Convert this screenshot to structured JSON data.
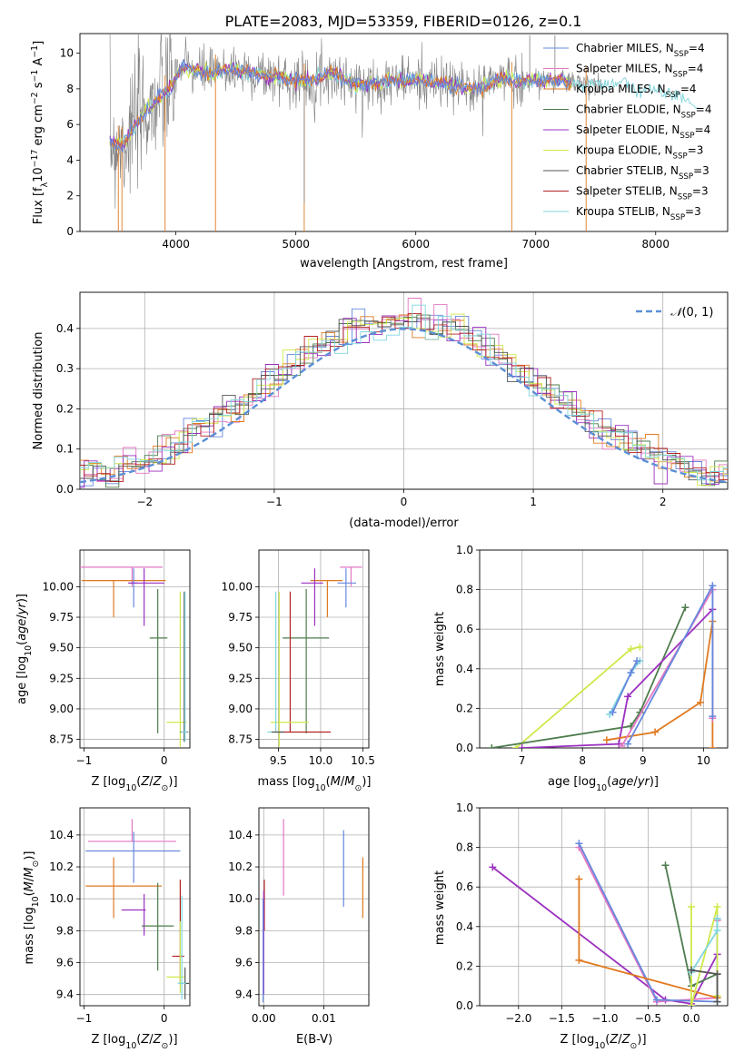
{
  "figure_title": "PLATE=2083, MJD=53359, FIBERID=0126, z=0.1",
  "colors": {
    "Chabrier MILES": "#6688dd",
    "Salpeter MILES": "#e377c2",
    "Kroupa MILES": "#e07a20",
    "Chabrier ELODIE": "#4e7d4e",
    "Salpeter ELODIE": "#9b30c0",
    "Kroupa ELODIE": "#cfe84a",
    "Chabrier STELIB": "#555555",
    "Salpeter STELIB": "#b22222",
    "Kroupa STELIB": "#7fd6dd",
    "data": "#808080",
    "normal": "#5b8fd6"
  },
  "chart_data": [
    {
      "id": "spectrum",
      "type": "line",
      "title": "PLATE=2083, MJD=53359, FIBERID=0126, z=0.1",
      "xlabel": "wavelength [Angstrom, rest frame]",
      "ylabel": "Flux [f_λ10^-17 erg cm^-2 s^-1 A^-1]",
      "xlim": [
        3200,
        8600
      ],
      "ylim": [
        0,
        11.1
      ],
      "xticks": [
        4000,
        5000,
        6000,
        7000,
        8000
      ],
      "yticks": [
        0,
        2,
        4,
        6,
        8,
        10
      ],
      "legend_position": "top-right",
      "legend": [
        {
          "name": "Chabrier MILES",
          "nssp": "4"
        },
        {
          "name": "Salpeter MILES",
          "nssp": "4"
        },
        {
          "name": "Kroupa MILES",
          "nssp": "4"
        },
        {
          "name": "Chabrier ELODIE",
          "nssp": "4"
        },
        {
          "name": "Salpeter ELODIE",
          "nssp": "4"
        },
        {
          "name": "Kroupa ELODIE",
          "nssp": "3"
        },
        {
          "name": "Chabrier STELIB",
          "nssp": "3"
        },
        {
          "name": "Salpeter STELIB",
          "nssp": "3"
        },
        {
          "name": "Kroupa STELIB",
          "nssp": "3"
        }
      ],
      "continuum": {
        "x": [
          3450,
          3550,
          3650,
          3750,
          3850,
          3950,
          4050,
          4150,
          4300,
          4500,
          4700,
          4900,
          5100,
          5300,
          5500,
          5700,
          5900,
          6100,
          6300,
          6500,
          6700,
          6900,
          7100,
          7300,
          7500,
          7700,
          7900,
          8100,
          8350
        ],
        "y": [
          5.0,
          4.9,
          5.8,
          6.8,
          7.4,
          8.0,
          9.3,
          9.0,
          8.9,
          9.1,
          8.8,
          8.6,
          8.4,
          8.9,
          8.2,
          8.4,
          8.5,
          8.4,
          8.2,
          8.0,
          8.6,
          8.4,
          8.5,
          8.4,
          8.1,
          8.4,
          8.0,
          7.8,
          7.0
        ]
      },
      "noise_end": 6900,
      "drop_lines": [
        3520,
        3550,
        3910,
        4330,
        5070,
        6800,
        7420
      ]
    },
    {
      "id": "residuals",
      "type": "histogram",
      "xlabel": "(data-model)/error",
      "ylabel": "Normed distribution",
      "xlim": [
        -2.5,
        2.5
      ],
      "ylim": [
        0,
        0.49
      ],
      "xticks": [
        -2,
        -1,
        0,
        1,
        2
      ],
      "yticks": [
        0.0,
        0.1,
        0.2,
        0.3,
        0.4
      ],
      "legend_position": "top-right",
      "legend_label": "N(0,1)",
      "bin_width": 0.1
    },
    {
      "id": "age_vs_Z",
      "type": "errorbar",
      "xlabel": "Z [log10(Z/Z⊙)]",
      "ylabel": "age [log10(age/yr)]",
      "xlim": [
        -1.05,
        0.32
      ],
      "ylim": [
        8.68,
        10.3
      ],
      "xticks": [
        -1,
        0
      ],
      "yticks": [
        8.75,
        9.0,
        9.25,
        9.5,
        9.75,
        10.0
      ],
      "points": [
        {
          "model": "Salpeter MILES",
          "x": -0.4,
          "y": 10.16,
          "xerr": [
            0.98,
            0.38
          ],
          "yerr": [
            0.16,
            0.0
          ]
        },
        {
          "model": "Kroupa MILES",
          "x": -0.63,
          "y": 10.05,
          "xerr": [
            0.4,
            0.65
          ],
          "yerr": [
            0.3,
            0.0
          ]
        },
        {
          "model": "Chabrier MILES",
          "x": -0.38,
          "y": 10.03,
          "xerr": [
            0.05,
            0.05
          ],
          "yerr": [
            0.2,
            0.12
          ]
        },
        {
          "model": "Salpeter ELODIE",
          "x": -0.25,
          "y": 10.03,
          "xerr": [
            0.2,
            0.25
          ],
          "yerr": [
            0.35,
            0.12
          ]
        },
        {
          "model": "Chabrier ELODIE",
          "x": -0.08,
          "y": 9.58,
          "xerr": [
            0.1,
            0.12
          ],
          "yerr": [
            0.78,
            0.4
          ]
        },
        {
          "model": "Kroupa ELODIE",
          "x": 0.2,
          "y": 8.89,
          "xerr": [
            0.17,
            0.08
          ],
          "yerr": [
            0.2,
            1.07
          ]
        },
        {
          "model": "Chabrier STELIB",
          "x": 0.25,
          "y": 8.81,
          "xerr": [
            0.05,
            0.05
          ],
          "yerr": [
            0.08,
            1.15
          ]
        },
        {
          "model": "Kroupa STELIB",
          "x": 0.26,
          "y": 8.81,
          "xerr": [
            0.05,
            0.03
          ],
          "yerr": [
            0.08,
            1.15
          ]
        }
      ]
    },
    {
      "id": "age_vs_mass",
      "type": "errorbar",
      "xlabel": "mass [log10(M/M⊙)]",
      "ylabel": "",
      "xlim": [
        9.27,
        10.57
      ],
      "ylim": [
        8.68,
        10.3
      ],
      "xticks": [
        9.5,
        10.0,
        10.5
      ],
      "yticks": [
        8.75,
        9.0,
        9.25,
        9.5,
        9.75,
        10.0
      ],
      "points": [
        {
          "model": "Salpeter MILES",
          "x": 10.36,
          "y": 10.16,
          "xerr": [
            0.13,
            0.13
          ],
          "yerr": [
            0.16,
            0.0
          ]
        },
        {
          "model": "Kroupa MILES",
          "x": 10.08,
          "y": 10.05,
          "xerr": [
            0.2,
            0.18
          ],
          "yerr": [
            0.3,
            0.0
          ]
        },
        {
          "model": "Chabrier MILES",
          "x": 10.3,
          "y": 10.03,
          "xerr": [
            0.1,
            0.12
          ],
          "yerr": [
            0.2,
            0.12
          ]
        },
        {
          "model": "Salpeter ELODIE",
          "x": 9.93,
          "y": 10.03,
          "xerr": [
            0.16,
            0.1
          ],
          "yerr": [
            0.35,
            0.12
          ]
        },
        {
          "model": "Chabrier ELODIE",
          "x": 9.83,
          "y": 9.58,
          "xerr": [
            0.28,
            0.27
          ],
          "yerr": [
            0.78,
            0.4
          ]
        },
        {
          "model": "Salpeter STELIB",
          "x": 9.64,
          "y": 8.81,
          "xerr": [
            0.18,
            0.48
          ],
          "yerr": [
            0.0,
            1.15
          ]
        },
        {
          "model": "Kroupa ELODIE",
          "x": 9.51,
          "y": 8.89,
          "xerr": [
            0.1,
            0.35
          ],
          "yerr": [
            0.2,
            1.07
          ]
        },
        {
          "model": "Kroupa STELIB",
          "x": 9.47,
          "y": 8.81,
          "xerr": [
            0.1,
            0.1
          ],
          "yerr": [
            0.0,
            1.15
          ]
        },
        {
          "model": "Chabrier STELIB",
          "x": 9.47,
          "y": 8.81,
          "xerr": [
            0.05,
            0.1
          ],
          "yerr": [
            0.0,
            0.0
          ]
        }
      ]
    },
    {
      "id": "weight_vs_age",
      "type": "line",
      "xlabel": "age [log10(age/yr)]",
      "ylabel": "mass weight",
      "xlim": [
        6.3,
        10.4
      ],
      "ylim": [
        0,
        1.0
      ],
      "xticks": [
        7,
        8,
        9,
        10
      ],
      "yticks": [
        0.0,
        0.2,
        0.4,
        0.6,
        0.8,
        1.0
      ],
      "series": [
        {
          "model": "Kroupa ELODIE",
          "points": [
            [
              6.9,
              0.0
            ],
            [
              8.8,
              0.5
            ],
            [
              8.95,
              0.51
            ]
          ]
        },
        {
          "model": "Chabrier ELODIE",
          "points": [
            [
              6.5,
              0.0
            ],
            [
              8.8,
              0.11
            ],
            [
              8.95,
              0.18
            ],
            [
              9.7,
              0.71
            ]
          ]
        },
        {
          "model": "Kroupa STELIB",
          "points": [
            [
              8.45,
              0.17
            ],
            [
              8.8,
              0.38
            ],
            [
              8.95,
              0.44
            ]
          ]
        },
        {
          "model": "Chabrier MILES",
          "points": [
            [
              8.5,
              0.18
            ],
            [
              8.8,
              0.38
            ],
            [
              8.9,
              0.44
            ]
          ]
        },
        {
          "model": "Salpeter ELODIE",
          "points": [
            [
              7.0,
              0.0
            ],
            [
              8.6,
              0.02
            ],
            [
              8.75,
              0.26
            ],
            [
              10.15,
              0.7
            ]
          ]
        },
        {
          "model": "Kroupa MILES",
          "points": [
            [
              8.4,
              0.04
            ],
            [
              9.2,
              0.08
            ],
            [
              9.95,
              0.23
            ],
            [
              10.15,
              0.64
            ],
            [
              10.15,
              0.0
            ]
          ]
        },
        {
          "model": "Salpeter MILES",
          "points": [
            [
              8.65,
              0.01
            ],
            [
              10.15,
              0.8
            ],
            [
              10.15,
              0.15
            ]
          ]
        },
        {
          "model": "Chabrier MILES",
          "points": [
            [
              8.75,
              0.02
            ],
            [
              10.15,
              0.82
            ],
            [
              10.15,
              0.16
            ]
          ]
        }
      ]
    },
    {
      "id": "mass_vs_Z",
      "type": "errorbar",
      "xlabel": "Z [log10(Z/Z⊙)]",
      "ylabel": "mass [log10(M/M⊙)]",
      "xlim": [
        -1.05,
        0.32
      ],
      "ylim": [
        9.33,
        10.57
      ],
      "xticks": [
        -1,
        0
      ],
      "yticks": [
        9.4,
        9.6,
        9.8,
        10.0,
        10.2,
        10.4
      ],
      "points": [
        {
          "model": "Salpeter MILES",
          "x": -0.4,
          "y": 10.36,
          "xerr": [
            0.55,
            0.55
          ],
          "yerr": [
            0.0,
            0.14
          ]
        },
        {
          "model": "Chabrier MILES",
          "x": -0.38,
          "y": 10.3,
          "xerr": [
            0.6,
            0.58
          ],
          "yerr": [
            0.2,
            0.12
          ]
        },
        {
          "model": "Kroupa MILES",
          "x": -0.63,
          "y": 10.08,
          "xerr": [
            0.35,
            0.6
          ],
          "yerr": [
            0.2,
            0.18
          ]
        },
        {
          "model": "Salpeter ELODIE",
          "x": -0.25,
          "y": 9.93,
          "xerr": [
            0.28,
            0.02
          ],
          "yerr": [
            0.16,
            0.1
          ]
        },
        {
          "model": "Chabrier ELODIE",
          "x": -0.08,
          "y": 9.83,
          "xerr": [
            0.2,
            0.2
          ],
          "yerr": [
            0.28,
            0.27
          ]
        },
        {
          "model": "Salpeter STELIB",
          "x": 0.2,
          "y": 9.64,
          "xerr": [
            0.1,
            0.05
          ],
          "yerr": [
            0.18,
            0.48
          ]
        },
        {
          "model": "Kroupa ELODIE",
          "x": 0.2,
          "y": 9.51,
          "xerr": [
            0.17,
            0.05
          ],
          "yerr": [
            0.1,
            0.35
          ]
        },
        {
          "model": "Chabrier STELIB",
          "x": 0.26,
          "y": 9.47,
          "xerr": [
            0.05,
            0.05
          ],
          "yerr": [
            0.1,
            0.1
          ]
        },
        {
          "model": "Kroupa STELIB",
          "x": 0.22,
          "y": 9.47,
          "xerr": [
            0.05,
            0.05
          ],
          "yerr": [
            0.1,
            0.55
          ]
        }
      ]
    },
    {
      "id": "mass_vs_EBV",
      "type": "errorbar",
      "xlabel": "E(B-V)",
      "ylabel": "",
      "xlim": [
        -0.0008,
        0.0175
      ],
      "ylim": [
        9.33,
        10.57
      ],
      "xticks": [
        0.0,
        0.01
      ],
      "xtick_labels": [
        "0.00",
        "0.01"
      ],
      "yticks": [
        9.4,
        9.6,
        9.8,
        10.0,
        10.2,
        10.4
      ],
      "points": [
        {
          "model": "Salpeter MILES",
          "x": 0.0033,
          "y": 10.36,
          "xerr": [
            0,
            0
          ],
          "yerr": [
            0.34,
            0.14
          ]
        },
        {
          "model": "Chabrier MILES",
          "x": 0.0133,
          "y": 10.3,
          "xerr": [
            0,
            0
          ],
          "yerr": [
            0.35,
            0.13
          ]
        },
        {
          "model": "Kroupa MILES",
          "x": 0.0165,
          "y": 10.08,
          "xerr": [
            0,
            0
          ],
          "yerr": [
            0.2,
            0.18
          ]
        },
        {
          "model": "Salpeter STELIB",
          "x": 0.0001,
          "y": 10.0,
          "xerr": [
            0,
            0
          ],
          "yerr": [
            0.2,
            0.12
          ]
        },
        {
          "model": "Salpeter ELODIE",
          "x": 0.0,
          "y": 9.75,
          "xerr": [
            0,
            0
          ],
          "yerr": [
            0.35,
            0.3
          ]
        },
        {
          "model": "Chabrier MILES",
          "x": -0.0001,
          "y": 9.7,
          "xerr": [
            0,
            0
          ],
          "yerr": [
            0.35,
            0.3
          ]
        }
      ]
    },
    {
      "id": "weight_vs_Z",
      "type": "line",
      "xlabel": "Z [log10(Z/Z⊙)]",
      "ylabel": "mass weight",
      "xlim": [
        -2.45,
        0.42
      ],
      "ylim": [
        0,
        1.0
      ],
      "xticks": [
        -2.0,
        -1.5,
        -1.0,
        -0.5,
        0.0
      ],
      "yticks": [
        0.0,
        0.2,
        0.4,
        0.6,
        0.8,
        1.0
      ],
      "series": [
        {
          "model": "Salpeter ELODIE",
          "points": [
            [
              -2.3,
              0.7
            ],
            [
              -0.3,
              0.03
            ],
            [
              0.0,
              0.01
            ],
            [
              0.3,
              0.26
            ]
          ]
        },
        {
          "model": "Salpeter MILES",
          "points": [
            [
              -1.3,
              0.8
            ],
            [
              -0.4,
              0.02
            ],
            [
              0.3,
              0.04
            ],
            [
              0.3,
              0.43
            ]
          ]
        },
        {
          "model": "Chabrier MILES",
          "points": [
            [
              -1.3,
              0.82
            ],
            [
              -0.4,
              0.03
            ],
            [
              0.3,
              0.02
            ],
            [
              0.3,
              0.44
            ]
          ]
        },
        {
          "model": "Kroupa MILES",
          "points": [
            [
              -1.3,
              0.64
            ],
            [
              -1.3,
              0.23
            ],
            [
              0.3,
              0.04
            ]
          ]
        },
        {
          "model": "Chabrier ELODIE",
          "points": [
            [
              -0.3,
              0.71
            ],
            [
              0.0,
              0.1
            ],
            [
              0.3,
              0.16
            ]
          ]
        },
        {
          "model": "Kroupa ELODIE",
          "points": [
            [
              0.0,
              0.5
            ],
            [
              0.0,
              0.0
            ],
            [
              0.3,
              0.5
            ],
            [
              0.3,
              0.05
            ]
          ]
        },
        {
          "model": "Kroupa STELIB",
          "points": [
            [
              0.0,
              0.17
            ],
            [
              0.3,
              0.38
            ],
            [
              0.3,
              0.44
            ]
          ]
        },
        {
          "model": "Chabrier STELIB",
          "points": [
            [
              0.0,
              0.18
            ],
            [
              0.3,
              0.16
            ],
            [
              0.3,
              0.02
            ]
          ]
        }
      ]
    }
  ]
}
